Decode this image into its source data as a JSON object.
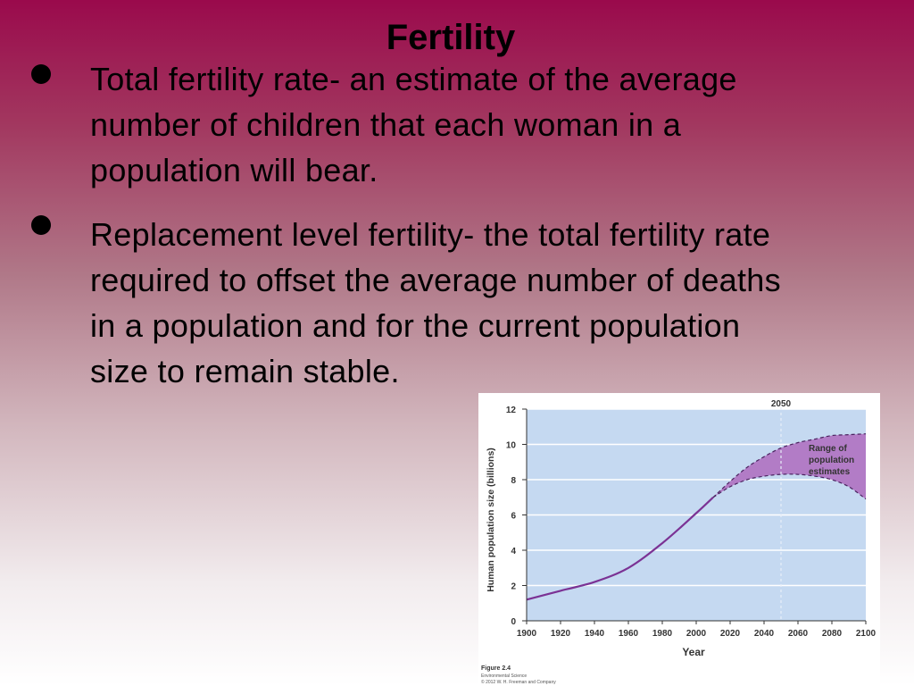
{
  "slide": {
    "title": "Fertility",
    "bullets": [
      {
        "line1": "Total fertility rate- an estimate of the average",
        "line2": "number of children that each woman in a",
        "line3": "population will bear."
      },
      {
        "line1": "Replacement level fertility- the total fertility rate",
        "line2": "required to offset the average number of deaths",
        "line3": "in a population and for the current population",
        "line4": "size to remain stable."
      }
    ]
  },
  "chart_data": {
    "type": "line",
    "xlabel": "Year",
    "ylabel": "Human population size (billions)",
    "xlim": [
      1900,
      2100
    ],
    "ylim": [
      0,
      12
    ],
    "xticks": [
      1900,
      1920,
      1940,
      1960,
      1980,
      2000,
      2020,
      2040,
      2060,
      2080,
      2100
    ],
    "yticks": [
      0,
      2,
      4,
      6,
      8,
      10,
      12
    ],
    "grid": "horizontal",
    "marker_label": "2050",
    "marker_x": 2050,
    "annotation": "Range of population estimates",
    "caption_title": "Figure 2.4",
    "caption_line1": "Environmental Science",
    "caption_line2": "© 2012 W. H. Freeman and Company",
    "series": [
      {
        "x": [
          1900,
          1920,
          1940,
          1960,
          1980,
          2000,
          2010
        ],
        "values": [
          1.2,
          1.7,
          2.2,
          3.0,
          4.4,
          6.1,
          7.0
        ]
      }
    ],
    "range_upper": {
      "x": [
        2010,
        2020,
        2030,
        2040,
        2050,
        2060,
        2070,
        2080,
        2090,
        2100
      ],
      "values": [
        7.0,
        7.9,
        8.7,
        9.3,
        9.8,
        10.1,
        10.3,
        10.5,
        10.55,
        10.6
      ]
    },
    "range_lower": {
      "x": [
        2010,
        2020,
        2030,
        2040,
        2050,
        2060,
        2070,
        2080,
        2090,
        2100
      ],
      "values": [
        7.0,
        7.6,
        8.0,
        8.2,
        8.3,
        8.3,
        8.2,
        8.0,
        7.6,
        6.9
      ]
    },
    "colors": {
      "plot_bg": "#c5d9f1",
      "line": "#7b3294",
      "range_fill": "#b27cc6",
      "marker": "#e8eef8"
    }
  }
}
